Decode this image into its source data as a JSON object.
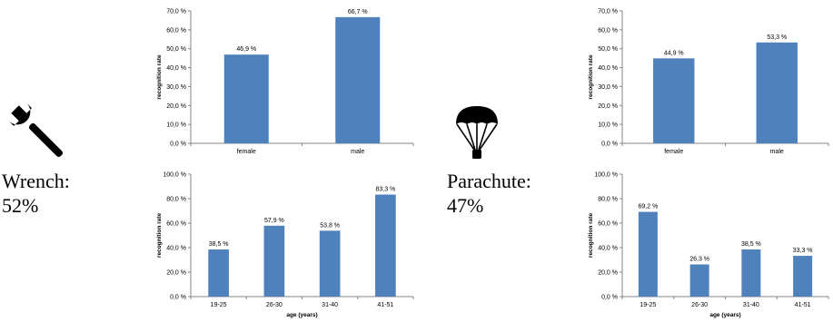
{
  "panels": [
    {
      "caption_name": "Wrench:",
      "caption_pct": "52%",
      "icon": "wrench-icon"
    },
    {
      "caption_name": "Parachute:",
      "caption_pct": "47%",
      "icon": "parachute-icon"
    }
  ],
  "bar_color": "#4f81bd",
  "chart_data": [
    {
      "type": "bar",
      "title": "",
      "xlabel": "",
      "ylabel": "recognition rate",
      "categories": [
        "female",
        "male"
      ],
      "values": [
        46.9,
        66.7
      ],
      "value_labels": [
        "46,9 %",
        "66,7 %"
      ],
      "ylim": [
        0,
        70
      ],
      "yticks": [
        0,
        10,
        20,
        30,
        40,
        50,
        60,
        70
      ],
      "ytick_labels": [
        "0,0 %",
        "10,0 %",
        "20,0 %",
        "30,0 %",
        "40,0 %",
        "50,0 %",
        "60,0 %",
        "70,0 %"
      ],
      "grid": false,
      "legend": "none"
    },
    {
      "type": "bar",
      "title": "",
      "xlabel": "age (years)",
      "ylabel": "recognition rate",
      "categories": [
        "19-25",
        "26-30",
        "31-40",
        "41-51"
      ],
      "values": [
        38.5,
        57.9,
        53.8,
        83.3
      ],
      "value_labels": [
        "38,5 %",
        "57,9 %",
        "53,8 %",
        "83,3 %"
      ],
      "ylim": [
        0,
        100
      ],
      "yticks": [
        0,
        20,
        40,
        60,
        80,
        100
      ],
      "ytick_labels": [
        "0,0 %",
        "20,0 %",
        "40,0 %",
        "60,0 %",
        "80,0 %",
        "100,0 %"
      ],
      "grid": false,
      "legend": "none"
    },
    {
      "type": "bar",
      "title": "",
      "xlabel": "",
      "ylabel": "recognition rate",
      "categories": [
        "female",
        "male"
      ],
      "values": [
        44.9,
        53.3
      ],
      "value_labels": [
        "44,9 %",
        "53,3 %"
      ],
      "ylim": [
        0,
        70
      ],
      "yticks": [
        0,
        10,
        20,
        30,
        40,
        50,
        60,
        70
      ],
      "ytick_labels": [
        "0,0 %",
        "10,0 %",
        "20,0 %",
        "30,0 %",
        "40,0 %",
        "50,0 %",
        "60,0 %",
        "70,0 %"
      ],
      "grid": false,
      "legend": "none"
    },
    {
      "type": "bar",
      "title": "",
      "xlabel": "age (years)",
      "ylabel": "recognition rate",
      "categories": [
        "19-25",
        "26-30",
        "31-40",
        "41-51"
      ],
      "values": [
        69.2,
        26.3,
        38.5,
        33.3
      ],
      "value_labels": [
        "69,2 %",
        "26,3 %",
        "38,5 %",
        "33,3 %"
      ],
      "ylim": [
        0,
        100
      ],
      "yticks": [
        0,
        20,
        40,
        60,
        80,
        100
      ],
      "ytick_labels": [
        "0,0 %",
        "20,0 %",
        "40,0 %",
        "60,0 %",
        "80,0 %",
        "100,0 %"
      ],
      "grid": false,
      "legend": "none"
    }
  ]
}
